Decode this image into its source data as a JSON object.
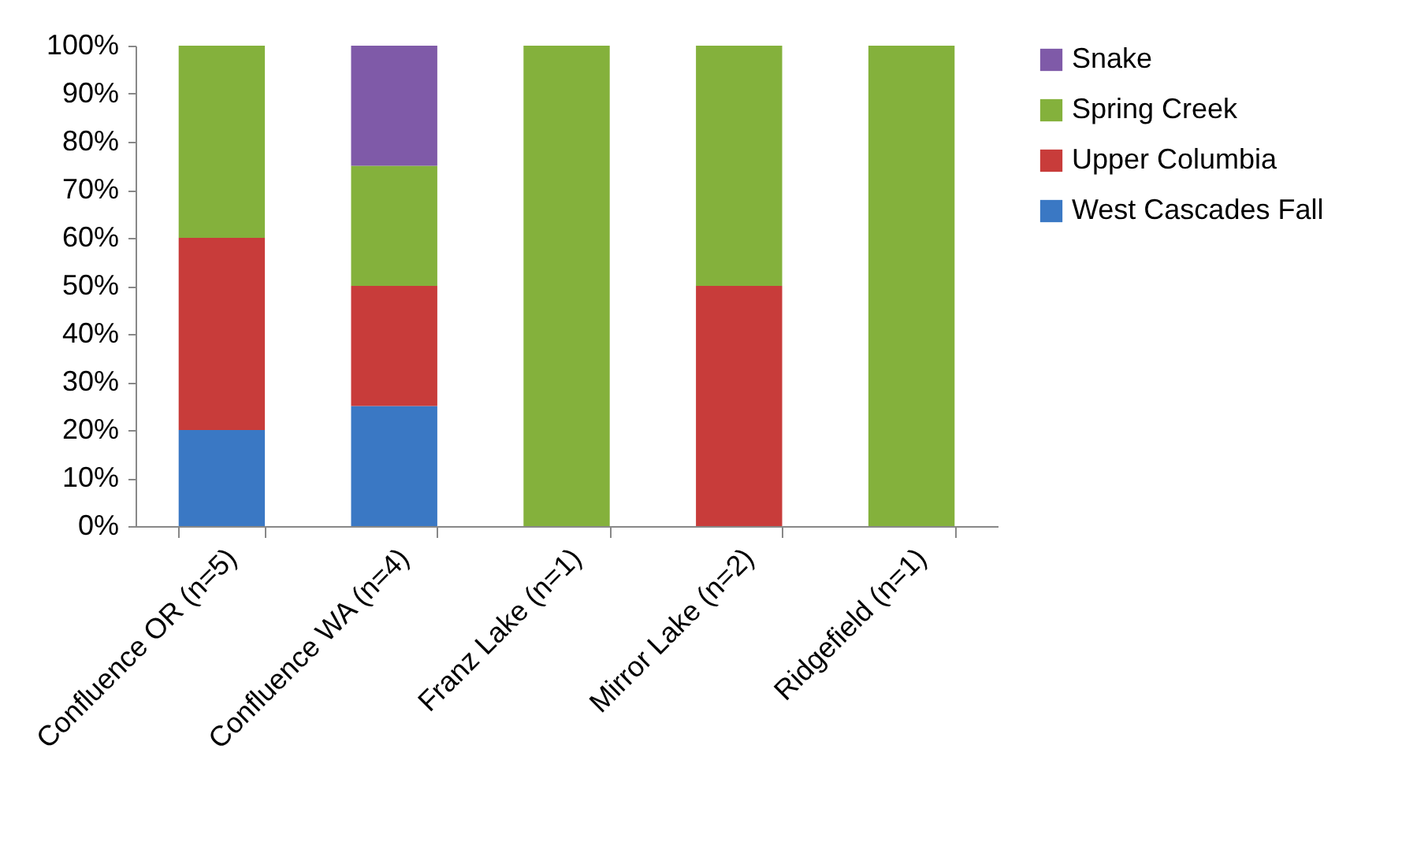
{
  "chart_data": {
    "type": "bar",
    "stacked": true,
    "categories": [
      "Confluence OR (n=5)",
      "Confluence WA (n=4)",
      "Franz Lake (n=1)",
      "Mirror Lake (n=2)",
      "Ridgefield (n=1)"
    ],
    "series": [
      {
        "name": "West Cascades Fall",
        "color": "#3a78c4",
        "values": [
          20,
          25,
          0,
          0,
          0
        ]
      },
      {
        "name": "Upper Columbia",
        "color": "#c83c3a",
        "values": [
          40,
          25,
          0,
          50,
          0
        ]
      },
      {
        "name": "Spring Creek",
        "color": "#84b13c",
        "values": [
          40,
          25,
          100,
          50,
          100
        ]
      },
      {
        "name": "Snake",
        "color": "#7f5aa8",
        "values": [
          0,
          25,
          0,
          0,
          0
        ]
      }
    ],
    "ylim": [
      0,
      100
    ],
    "yticks": [
      {
        "value": 0,
        "label": "0%"
      },
      {
        "value": 10,
        "label": "10%"
      },
      {
        "value": 20,
        "label": "20%"
      },
      {
        "value": 30,
        "label": "30%"
      },
      {
        "value": 40,
        "label": "40%"
      },
      {
        "value": 50,
        "label": "50%"
      },
      {
        "value": 60,
        "label": "60%"
      },
      {
        "value": 70,
        "label": "70%"
      },
      {
        "value": 80,
        "label": "80%"
      },
      {
        "value": 90,
        "label": "90%"
      },
      {
        "value": 100,
        "label": "100%"
      }
    ],
    "grid": false,
    "legend": "right"
  }
}
